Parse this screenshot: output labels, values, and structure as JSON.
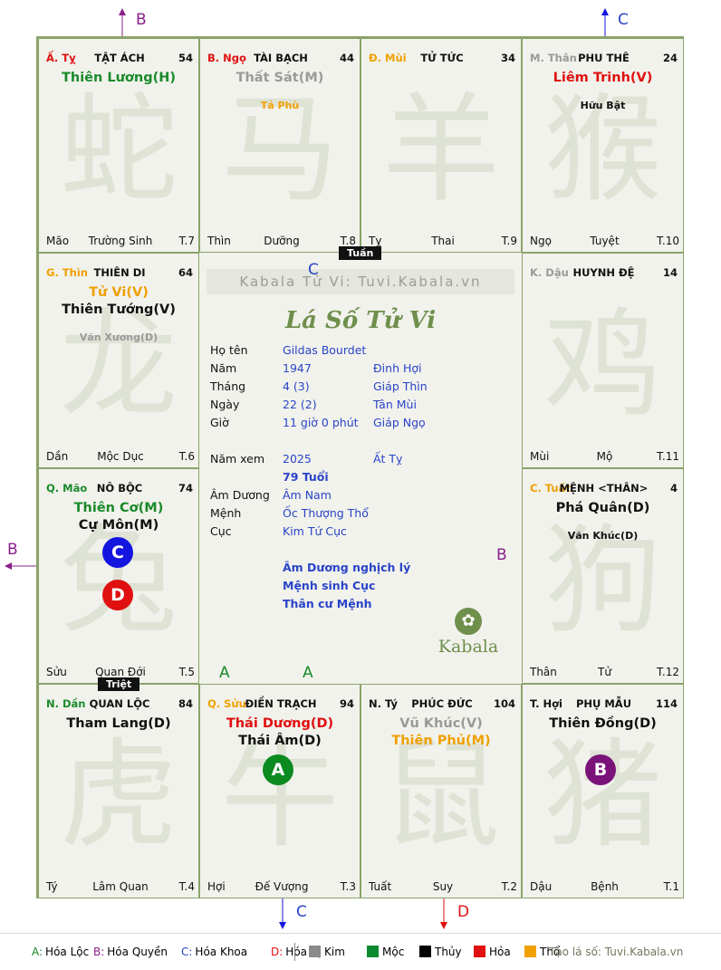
{
  "center": {
    "watermark": "Kabala Tử Vi: Tuvi.Kabala.vn",
    "title": "Lá Số Tử Vi",
    "logo_text": "Kabala",
    "rows": [
      {
        "label": "Họ tên",
        "v1": "Gildas Bourdet",
        "v2": ""
      },
      {
        "label": "Năm",
        "v1": "1947",
        "v2": "Đinh Hợi"
      },
      {
        "label": "Tháng",
        "v1": "4  (3)",
        "v2": "Giáp Thìn"
      },
      {
        "label": "Ngày",
        "v1": "22  (2)",
        "v2": "Tân Mùi"
      },
      {
        "label": "Giờ",
        "v1": "11 giờ 0 phút",
        "v2": "Giáp Ngọ"
      },
      {
        "label": "Năm xem",
        "v1": "2025",
        "v2": "Ất Tỵ"
      },
      {
        "label": "",
        "v1": "79 Tuổi",
        "v2": ""
      },
      {
        "label": "Âm Dương",
        "v1": "Âm Nam",
        "v2": ""
      },
      {
        "label": "Mệnh",
        "v1": "Ốc Thượng Thổ",
        "v2": ""
      },
      {
        "label": "Cục",
        "v1": "Kim Tứ Cục",
        "v2": ""
      }
    ],
    "notes": [
      "Âm Dương nghịch lý",
      "Mệnh sinh Cục",
      "Thân cư Mệnh"
    ]
  },
  "tags": {
    "tuan": "Tuần",
    "triet": "Triệt"
  },
  "palaces": [
    {
      "id": "ty",
      "can": "Ấ. Tỵ",
      "can_color": "#e01010",
      "name": "TẬT ÁCH",
      "num": "54",
      "stars": [
        {
          "t": "Thiên Lương(H)",
          "c": "#1a8a2a",
          "k": "major"
        }
      ],
      "foot": [
        "Mão",
        "Trường Sinh",
        "T.7"
      ],
      "animal": "蛇"
    },
    {
      "id": "ngo",
      "can": "B. Ngọ",
      "can_color": "#e01010",
      "name": "TÀI BẠCH",
      "num": "44",
      "stars": [
        {
          "t": "Thất Sát(M)",
          "c": "#9a9a9a",
          "k": "major"
        },
        {
          "t": "",
          "c": "",
          "k": "minor"
        },
        {
          "t": "Tả Phù",
          "c": "#f0a000",
          "k": "minor"
        }
      ],
      "foot": [
        "Thìn",
        "Dưỡng",
        "T.8"
      ],
      "animal": "马"
    },
    {
      "id": "mui",
      "can": "Đ. Mùi",
      "can_color": "#f0a000",
      "name": "TỬ TỨC",
      "num": "34",
      "stars": [],
      "foot": [
        "Tỵ",
        "Thai",
        "T.9"
      ],
      "animal": "羊"
    },
    {
      "id": "than",
      "can": "M. Thân",
      "can_color": "#9a9a9a",
      "name": "PHU THÊ",
      "num": "24",
      "stars": [
        {
          "t": "Liêm Trinh(V)",
          "c": "#e01010",
          "k": "major"
        },
        {
          "t": "",
          "c": "",
          "k": "minor"
        },
        {
          "t": "Hữu Bật",
          "c": "#111",
          "k": "minor"
        }
      ],
      "foot": [
        "Ngọ",
        "Tuyệt",
        "T.10"
      ],
      "animal": "猴"
    },
    {
      "id": "thin",
      "can": "G. Thìn",
      "can_color": "#f0a000",
      "name": "THIÊN DI",
      "num": "64",
      "stars": [
        {
          "t": "Tử Vi(V)",
          "c": "#f0a000",
          "k": "major"
        },
        {
          "t": "Thiên Tướng(V)",
          "c": "#111",
          "k": "major"
        },
        {
          "t": "",
          "c": "",
          "k": "minor"
        },
        {
          "t": "Văn Xương(D)",
          "c": "#9a9a9a",
          "k": "minor"
        }
      ],
      "foot": [
        "Dần",
        "Mộc Dục",
        "T.6"
      ],
      "animal": "龙"
    },
    {
      "id": "dau",
      "can": "K. Dậu",
      "can_color": "#9a9a9a",
      "name": "HUYNH ĐỆ",
      "num": "14",
      "stars": [],
      "foot": [
        "Mùi",
        "Mộ",
        "T.11"
      ],
      "animal": "鸡"
    },
    {
      "id": "mao",
      "can": "Q. Mão",
      "can_color": "#1a8a2a",
      "name": "NÔ BỘC",
      "num": "74",
      "stars": [
        {
          "t": "Thiên Cơ(M)",
          "c": "#1a8a2a",
          "k": "major"
        },
        {
          "t": "Cự Môn(M)",
          "c": "#111",
          "k": "major"
        }
      ],
      "foot": [
        "Sửu",
        "Quan Đới",
        "T.5"
      ],
      "animal": "兔"
    },
    {
      "id": "tuat",
      "can": "C. Tuất",
      "can_color": "#f0a000",
      "name": "MỆNH <THÂN>",
      "num": "4",
      "stars": [
        {
          "t": "Phá Quân(D)",
          "c": "#111",
          "k": "major"
        },
        {
          "t": "",
          "c": "",
          "k": "minor"
        },
        {
          "t": "Văn Khúc(D)",
          "c": "#111",
          "k": "minor"
        }
      ],
      "foot": [
        "Thân",
        "Tử",
        "T.12"
      ],
      "animal": "狗"
    },
    {
      "id": "dan",
      "can": "N. Dần",
      "can_color": "#1a8a2a",
      "name": "QUAN LỘC",
      "num": "84",
      "stars": [
        {
          "t": "Tham Lang(D)",
          "c": "#111",
          "k": "major"
        }
      ],
      "foot": [
        "Tý",
        "Lâm Quan",
        "T.4"
      ],
      "animal": "虎"
    },
    {
      "id": "suu",
      "can": "Q. Sửu",
      "can_color": "#f0a000",
      "name": "ĐIỀN TRẠCH",
      "num": "94",
      "stars": [
        {
          "t": "Thái Dương(D)",
          "c": "#e01010",
          "k": "major"
        },
        {
          "t": "Thái Âm(D)",
          "c": "#111",
          "k": "major"
        }
      ],
      "foot": [
        "Hợi",
        "Đế Vượng",
        "T.3"
      ],
      "animal": "牛"
    },
    {
      "id": "ty2",
      "can": "N. Tý",
      "can_color": "#111",
      "name": "PHÚC ĐỨC",
      "num": "104",
      "stars": [
        {
          "t": "Vũ Khúc(V)",
          "c": "#9a9a9a",
          "k": "major"
        },
        {
          "t": "Thiên Phủ(M)",
          "c": "#f0a000",
          "k": "major"
        }
      ],
      "foot": [
        "Tuất",
        "Suy",
        "T.2"
      ],
      "animal": "鼠"
    },
    {
      "id": "hoi",
      "can": "T. Hợi",
      "can_color": "#111",
      "name": "PHỤ MẪU",
      "num": "114",
      "stars": [
        {
          "t": "Thiên Đồng(D)",
          "c": "#111",
          "k": "major"
        }
      ],
      "foot": [
        "Dậu",
        "Bệnh",
        "T.1"
      ],
      "animal": "猪"
    }
  ],
  "badges": [
    {
      "txt": "C",
      "color": "#1515e0"
    },
    {
      "txt": "D",
      "color": "#e01010"
    },
    {
      "txt": "A",
      "color": "#0b8a20"
    },
    {
      "txt": "B",
      "color": "#7a127a"
    }
  ],
  "side_letters": [
    {
      "t": "B",
      "color": "#8a208a"
    },
    {
      "t": "C",
      "color": "#2a44c8"
    },
    {
      "t": "B",
      "color": "#8a208a"
    },
    {
      "t": "C",
      "color": "#2a44c8"
    },
    {
      "t": "D",
      "color": "#e01010"
    },
    {
      "t": "C",
      "color": "#2a44c8"
    },
    {
      "t": "B",
      "color": "#8a208a"
    },
    {
      "t": "A",
      "color": "#1a8a2a"
    },
    {
      "t": "A",
      "color": "#1a8a2a"
    }
  ],
  "legend": {
    "items": [
      {
        "k": "A:",
        "v": "Hóa Lộc",
        "c": "#1a8a2a"
      },
      {
        "k": "B:",
        "v": "Hóa Quyền",
        "c": "#8a208a"
      },
      {
        "k": "C:",
        "v": "Hóa Khoa",
        "c": "#2a44c8"
      },
      {
        "k": "D:",
        "v": "Hóa Kị",
        "c": "#e01010"
      }
    ],
    "elements": [
      {
        "v": "Kim",
        "c": "#8a8a8a"
      },
      {
        "v": "Mộc",
        "c": "#0b8a30"
      },
      {
        "v": "Thủy",
        "c": "#000000"
      },
      {
        "v": "Hỏa",
        "c": "#e01010"
      },
      {
        "v": "Thổ",
        "c": "#f0a000"
      }
    ],
    "credit": "Tạo lá số: Tuvi.Kabala.vn"
  }
}
